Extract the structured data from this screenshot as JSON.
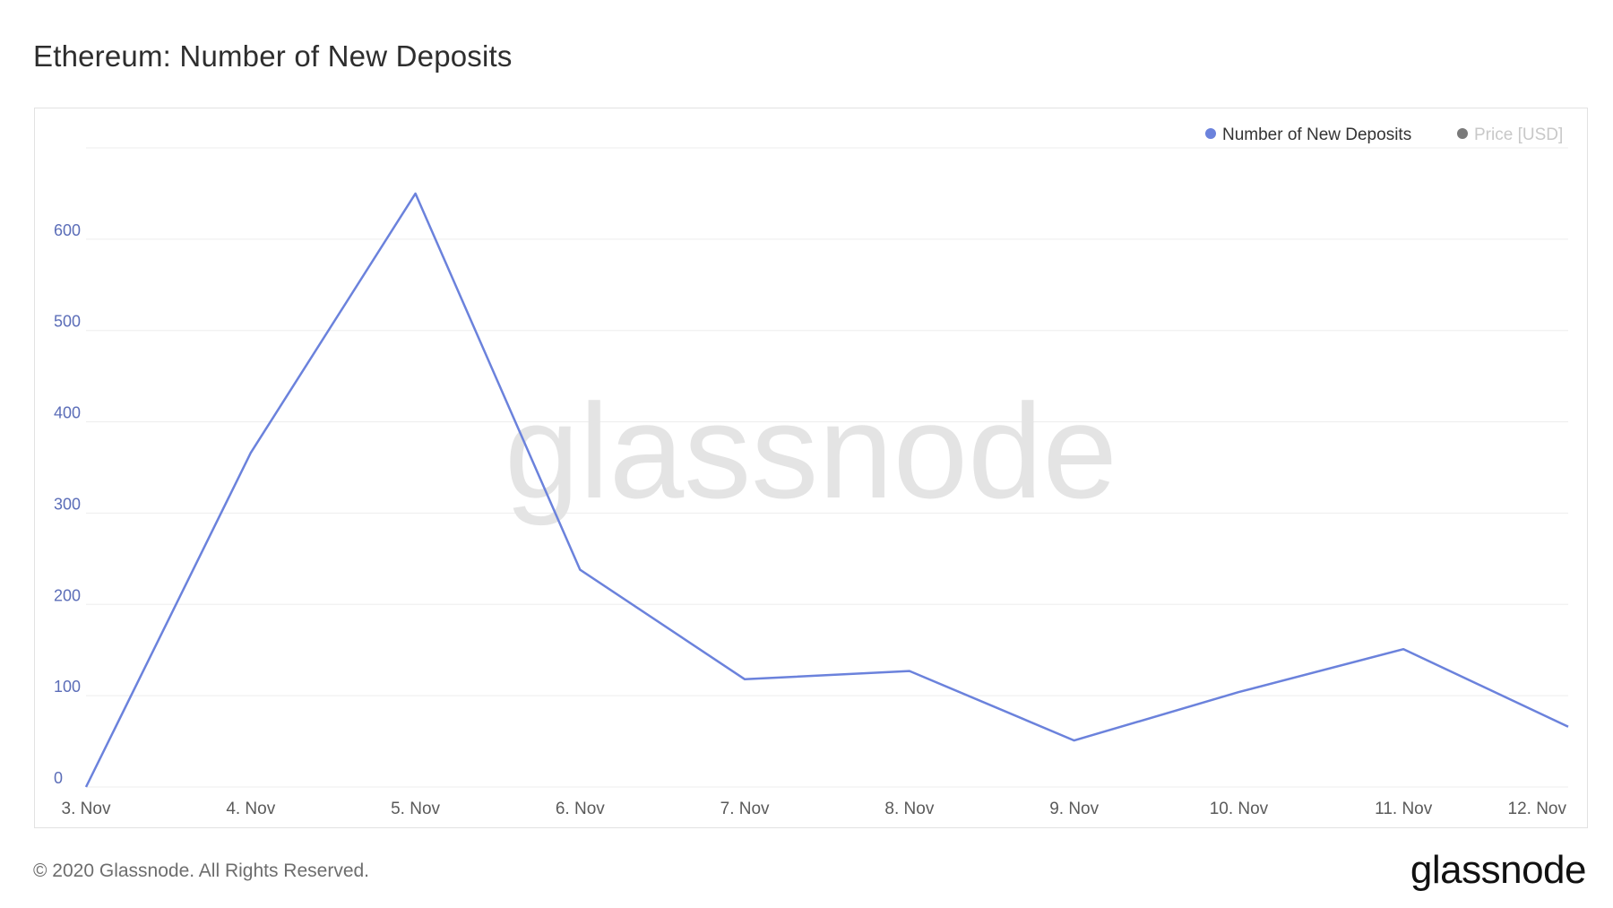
{
  "title": "Ethereum: Number of New Deposits",
  "footer": {
    "copyright": "© 2020 Glassnode. All Rights Reserved.",
    "logo_text": "glassnode"
  },
  "watermark": "glassnode",
  "colors": {
    "series": "#6b82dc",
    "axis_text": "#5b6db8",
    "x_tick_text": "#5a5a5a",
    "grid": "#ededed",
    "price_legend_dot": "#7a7a7a",
    "price_legend_text": "#c8c8c8",
    "watermark": "#e4e4e4"
  },
  "chart_data": {
    "type": "line",
    "title": "Ethereum: Number of New Deposits",
    "xlabel": "",
    "ylabel": "",
    "categories": [
      "3. Nov",
      "4. Nov",
      "5. Nov",
      "6. Nov",
      "7. Nov",
      "8. Nov",
      "9. Nov",
      "10. Nov",
      "11. Nov",
      "12. Nov"
    ],
    "series": [
      {
        "name": "Number of New Deposits",
        "values": [
          0,
          366,
          650,
          238,
          118,
          127,
          51,
          104,
          151,
          66
        ]
      }
    ],
    "legend": [
      {
        "label": "Number of New Deposits",
        "active": true
      },
      {
        "label": "Price [USD]",
        "active": false
      }
    ],
    "y_ticks": [
      0,
      100,
      200,
      300,
      400,
      500,
      600
    ],
    "ylim": [
      0,
      700
    ],
    "grid": true,
    "legend_position": "top-right"
  }
}
